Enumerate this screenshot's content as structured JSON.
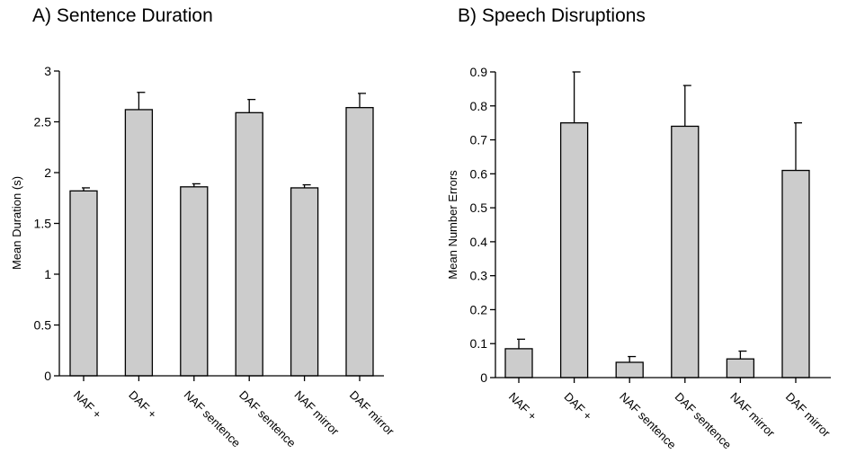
{
  "chart_data": [
    {
      "type": "bar",
      "title": "A) Sentence Duration",
      "xlabel": "",
      "ylabel": "Mean Duration (s)",
      "categories": [
        "NAF +",
        "DAF +",
        "NAF sentence",
        "DAF sentence",
        "NAF mirror",
        "DAF mirror"
      ],
      "values": [
        1.82,
        2.62,
        1.86,
        2.59,
        1.85,
        2.64
      ],
      "error_bars": [
        0.03,
        0.17,
        0.03,
        0.13,
        0.03,
        0.14
      ],
      "ylim": [
        0,
        3
      ],
      "yticks": [
        "0",
        "0.5",
        "1",
        "1.5",
        "2",
        "2.5",
        "3"
      ],
      "grid": false,
      "bar_color": "#cccccc"
    },
    {
      "type": "bar",
      "title": "B) Speech Disruptions",
      "xlabel": "",
      "ylabel": "Mean Number Errors",
      "categories": [
        "NAF +",
        "DAF +",
        "NAF sentence",
        "DAF sentence",
        "NAF mirror",
        "DAF mirror"
      ],
      "values": [
        0.085,
        0.75,
        0.045,
        0.74,
        0.055,
        0.61
      ],
      "error_bars": [
        0.028,
        0.15,
        0.017,
        0.12,
        0.023,
        0.14
      ],
      "ylim": [
        0,
        0.9
      ],
      "yticks": [
        "0",
        "0.1",
        "0.2",
        "0.3",
        "0.4",
        "0.5",
        "0.6",
        "0.7",
        "0.8",
        "0.9"
      ],
      "grid": false,
      "bar_color": "#cccccc"
    }
  ]
}
